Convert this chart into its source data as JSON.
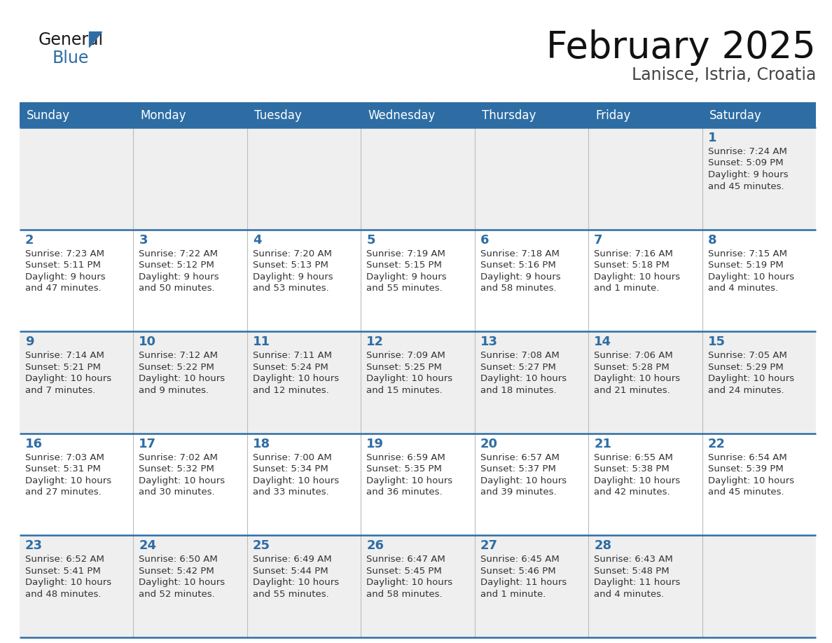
{
  "title": "February 2025",
  "subtitle": "Lanisce, Istria, Croatia",
  "days_of_week": [
    "Sunday",
    "Monday",
    "Tuesday",
    "Wednesday",
    "Thursday",
    "Friday",
    "Saturday"
  ],
  "header_bg_color": "#2E6DA4",
  "header_text_color": "#FFFFFF",
  "cell_bg_color": "#EFEFEF",
  "border_color": "#2E6DA4",
  "day_number_color": "#2E6DA4",
  "text_color": "#333333",
  "logo_general_color": "#1a1a1a",
  "logo_blue_color": "#2E6DA4",
  "weeks": [
    [
      null,
      null,
      null,
      null,
      null,
      null,
      1
    ],
    [
      2,
      3,
      4,
      5,
      6,
      7,
      8
    ],
    [
      9,
      10,
      11,
      12,
      13,
      14,
      15
    ],
    [
      16,
      17,
      18,
      19,
      20,
      21,
      22
    ],
    [
      23,
      24,
      25,
      26,
      27,
      28,
      null
    ]
  ],
  "cell_data": {
    "1": {
      "sunrise": "7:24 AM",
      "sunset": "5:09 PM",
      "daylight": "9 hours",
      "daylight2": "and 45 minutes."
    },
    "2": {
      "sunrise": "7:23 AM",
      "sunset": "5:11 PM",
      "daylight": "9 hours",
      "daylight2": "and 47 minutes."
    },
    "3": {
      "sunrise": "7:22 AM",
      "sunset": "5:12 PM",
      "daylight": "9 hours",
      "daylight2": "and 50 minutes."
    },
    "4": {
      "sunrise": "7:20 AM",
      "sunset": "5:13 PM",
      "daylight": "9 hours",
      "daylight2": "and 53 minutes."
    },
    "5": {
      "sunrise": "7:19 AM",
      "sunset": "5:15 PM",
      "daylight": "9 hours",
      "daylight2": "and 55 minutes."
    },
    "6": {
      "sunrise": "7:18 AM",
      "sunset": "5:16 PM",
      "daylight": "9 hours",
      "daylight2": "and 58 minutes."
    },
    "7": {
      "sunrise": "7:16 AM",
      "sunset": "5:18 PM",
      "daylight": "10 hours",
      "daylight2": "and 1 minute."
    },
    "8": {
      "sunrise": "7:15 AM",
      "sunset": "5:19 PM",
      "daylight": "10 hours",
      "daylight2": "and 4 minutes."
    },
    "9": {
      "sunrise": "7:14 AM",
      "sunset": "5:21 PM",
      "daylight": "10 hours",
      "daylight2": "and 7 minutes."
    },
    "10": {
      "sunrise": "7:12 AM",
      "sunset": "5:22 PM",
      "daylight": "10 hours",
      "daylight2": "and 9 minutes."
    },
    "11": {
      "sunrise": "7:11 AM",
      "sunset": "5:24 PM",
      "daylight": "10 hours",
      "daylight2": "and 12 minutes."
    },
    "12": {
      "sunrise": "7:09 AM",
      "sunset": "5:25 PM",
      "daylight": "10 hours",
      "daylight2": "and 15 minutes."
    },
    "13": {
      "sunrise": "7:08 AM",
      "sunset": "5:27 PM",
      "daylight": "10 hours",
      "daylight2": "and 18 minutes."
    },
    "14": {
      "sunrise": "7:06 AM",
      "sunset": "5:28 PM",
      "daylight": "10 hours",
      "daylight2": "and 21 minutes."
    },
    "15": {
      "sunrise": "7:05 AM",
      "sunset": "5:29 PM",
      "daylight": "10 hours",
      "daylight2": "and 24 minutes."
    },
    "16": {
      "sunrise": "7:03 AM",
      "sunset": "5:31 PM",
      "daylight": "10 hours",
      "daylight2": "and 27 minutes."
    },
    "17": {
      "sunrise": "7:02 AM",
      "sunset": "5:32 PM",
      "daylight": "10 hours",
      "daylight2": "and 30 minutes."
    },
    "18": {
      "sunrise": "7:00 AM",
      "sunset": "5:34 PM",
      "daylight": "10 hours",
      "daylight2": "and 33 minutes."
    },
    "19": {
      "sunrise": "6:59 AM",
      "sunset": "5:35 PM",
      "daylight": "10 hours",
      "daylight2": "and 36 minutes."
    },
    "20": {
      "sunrise": "6:57 AM",
      "sunset": "5:37 PM",
      "daylight": "10 hours",
      "daylight2": "and 39 minutes."
    },
    "21": {
      "sunrise": "6:55 AM",
      "sunset": "5:38 PM",
      "daylight": "10 hours",
      "daylight2": "and 42 minutes."
    },
    "22": {
      "sunrise": "6:54 AM",
      "sunset": "5:39 PM",
      "daylight": "10 hours",
      "daylight2": "and 45 minutes."
    },
    "23": {
      "sunrise": "6:52 AM",
      "sunset": "5:41 PM",
      "daylight": "10 hours",
      "daylight2": "and 48 minutes."
    },
    "24": {
      "sunrise": "6:50 AM",
      "sunset": "5:42 PM",
      "daylight": "10 hours",
      "daylight2": "and 52 minutes."
    },
    "25": {
      "sunrise": "6:49 AM",
      "sunset": "5:44 PM",
      "daylight": "10 hours",
      "daylight2": "and 55 minutes."
    },
    "26": {
      "sunrise": "6:47 AM",
      "sunset": "5:45 PM",
      "daylight": "10 hours",
      "daylight2": "and 58 minutes."
    },
    "27": {
      "sunrise": "6:45 AM",
      "sunset": "5:46 PM",
      "daylight": "11 hours",
      "daylight2": "and 1 minute."
    },
    "28": {
      "sunrise": "6:43 AM",
      "sunset": "5:48 PM",
      "daylight": "11 hours",
      "daylight2": "and 4 minutes."
    }
  }
}
